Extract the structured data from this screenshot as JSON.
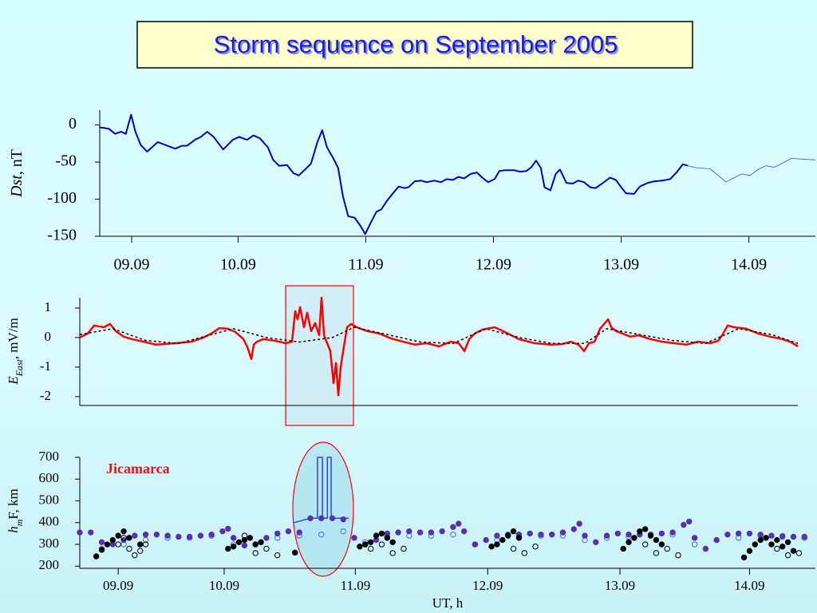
{
  "title": "Storm sequence on September 2005",
  "chart_data": [
    {
      "type": "line",
      "ylabel": [
        "Dst",
        ", nT"
      ],
      "xlim": [
        10,
        144.5
      ],
      "ylim": [
        -150,
        20
      ],
      "yticks": [
        0,
        -50,
        -100,
        -150
      ],
      "xticks": [
        {
          "value": 16,
          "label": "09.09"
        },
        {
          "value": 36,
          "label": "10.09"
        },
        {
          "value": 60,
          "label": "11.09"
        },
        {
          "value": 84,
          "label": "12.09"
        },
        {
          "value": 108,
          "label": "13.09"
        },
        {
          "value": 132,
          "label": "14.09"
        }
      ],
      "series": [
        {
          "color": "#0000cc",
          "line_width": 2,
          "x": [
            9.9,
            11.7,
            12.9,
            14.0,
            14.9,
            15.9,
            16.7,
            17.7,
            18.9,
            20.9,
            22.7,
            24.2,
            25.4,
            26.4,
            27.9,
            29.0,
            30.2,
            31.4,
            33.2,
            35.0,
            36.2,
            37.7,
            38.9,
            40.1,
            41.6,
            42.6,
            43.7,
            45.2,
            46.4,
            47.4,
            48.6,
            49.7,
            50.9,
            51.8,
            52.7,
            53.9,
            54.8,
            55.7,
            56.7,
            57.9,
            59.0,
            59.9,
            60.9,
            62.0,
            62.9,
            63.9,
            65.1,
            66.2,
            67.2,
            68.0,
            69.2,
            70.4,
            71.4,
            72.9,
            74.1,
            75.2,
            76.4,
            77.4,
            78.5,
            79.7,
            80.9,
            81.9,
            83.0,
            84.2,
            85.1,
            86.1,
            87.9,
            89.0,
            90.2,
            91.1,
            92.0,
            92.9,
            93.6,
            94.7,
            95.7,
            96.5,
            97.7,
            98.9,
            99.9,
            101.0,
            102.2,
            103.2,
            104.4,
            105.9,
            107.0,
            107.9,
            108.9,
            110.4,
            111.5,
            113.0,
            114.2,
            115.7,
            117.2,
            118.4,
            119.6,
            120.5
          ],
          "values": [
            -3,
            -5,
            -12,
            -9,
            -12,
            14,
            -9,
            -27,
            -36,
            -23,
            -28,
            -32,
            -28,
            -28,
            -20,
            -16,
            -9,
            -16,
            -33,
            -20,
            -16,
            -20,
            -14,
            -18,
            -30,
            -47,
            -55,
            -54,
            -65,
            -68,
            -60,
            -52,
            -23,
            -7,
            -30,
            -45,
            -58,
            -96,
            -123,
            -125,
            -136,
            -147,
            -132,
            -117,
            -114,
            -103,
            -92,
            -83,
            -85,
            -84,
            -76,
            -75,
            -77,
            -75,
            -77,
            -73,
            -74,
            -70,
            -72,
            -66,
            -64,
            -71,
            -77,
            -73,
            -62,
            -61,
            -61,
            -63,
            -62,
            -57,
            -48,
            -58,
            -84,
            -88,
            -66,
            -60,
            -78,
            -79,
            -75,
            -77,
            -84,
            -85,
            -79,
            -71,
            -74,
            -83,
            -92,
            -93,
            -83,
            -78,
            -76,
            -75,
            -73,
            -64,
            -53,
            -55
          ]
        },
        {
          "color": "#3355cc",
          "line_width": 0.8,
          "x": [
            120.5,
            122.4,
            124.7,
            126.2,
            127.7,
            129.2,
            130.7,
            132.2,
            133.7,
            135.2,
            136.7,
            138.2,
            140.0,
            141.9,
            144.5
          ],
          "values": [
            -55,
            -58,
            -59,
            -68,
            -77,
            -71,
            -66,
            -68,
            -60,
            -55,
            -57,
            -52,
            -45,
            -46,
            -47
          ]
        }
      ]
    },
    {
      "type": "line",
      "ylabel": [
        "E",
        "East",
        ", mV/m"
      ],
      "xlim": [
        10,
        140.8
      ],
      "ylim": [
        -2.3,
        1.35
      ],
      "yticks": [
        1,
        0,
        -1,
        -2
      ],
      "series": [
        {
          "color": "#ff0000",
          "line_width": 2.5,
          "x": [
            10,
            11.45,
            12.62,
            14.36,
            15.52,
            16.54,
            17.99,
            19.45,
            21.63,
            23.81,
            25.26,
            27.44,
            30.35,
            32.53,
            33.98,
            35.44,
            36.89,
            38.34,
            39.8,
            40.52,
            41.25,
            41.69,
            42.27,
            43.43,
            45.61,
            47.5,
            48.66,
            49.24,
            49.68,
            50.12,
            50.84,
            51.42,
            52.15,
            52.88,
            53.6,
            54.04,
            54.48,
            55.06,
            55.64,
            56.22,
            56.66,
            57.09,
            57.53,
            57.97,
            58.69,
            59.42,
            60.44,
            62.33,
            64.51,
            66.69,
            68.87,
            71.05,
            73.23,
            75.41,
            77.59,
            79.04,
            80.06,
            80.93,
            81.95,
            83.4,
            85.58,
            87.76,
            89.94,
            92.85,
            95.76,
            97.94,
            99.39,
            100.84,
            101.86,
            102.73,
            103.75,
            104.77,
            105.64,
            106.22,
            106.8,
            107.67,
            108.84,
            110.29,
            111.74,
            113.92,
            116.1,
            118.28,
            120.47,
            122.65,
            124.83,
            126.28,
            127.01,
            128.02,
            129.19,
            131.37,
            133.55,
            135.73,
            137.91,
            139.36,
            140.81
          ],
          "values": [
            0,
            0.14,
            0.41,
            0.35,
            0.46,
            0.22,
            0.03,
            -0.05,
            -0.14,
            -0.24,
            -0.22,
            -0.19,
            -0.14,
            0,
            0.14,
            0.32,
            0.3,
            0.19,
            -0.05,
            -0.32,
            -0.73,
            -0.24,
            -0.14,
            -0.05,
            -0.11,
            -0.19,
            -0.14,
            0.89,
            0.62,
            1.03,
            0.35,
            0.84,
            0.22,
            0.49,
            0.08,
            1.35,
            0.08,
            -0.19,
            -0.46,
            -1.54,
            -0.86,
            -1.95,
            -1.0,
            -0.46,
            0.35,
            0.46,
            0.35,
            0.22,
            0.14,
            -0.03,
            -0.14,
            -0.24,
            -0.19,
            -0.3,
            -0.14,
            -0.19,
            -0.46,
            -0.05,
            0.14,
            0.27,
            0.35,
            0.16,
            -0.05,
            -0.19,
            -0.24,
            -0.22,
            -0.14,
            -0.24,
            -0.46,
            -0.19,
            -0.14,
            0.3,
            0.49,
            0.62,
            0.35,
            0.22,
            0.14,
            0.03,
            0.08,
            -0.05,
            -0.14,
            -0.19,
            -0.24,
            -0.14,
            -0.19,
            -0.11,
            0.08,
            0.41,
            0.35,
            0.3,
            0.14,
            0.03,
            -0.05,
            -0.14,
            -0.3
          ]
        },
        {
          "color": "#000000",
          "line_width": 1.5,
          "dash": true,
          "x": [
            10,
            16,
            22,
            28,
            34,
            38,
            44,
            50,
            56,
            60,
            66,
            72,
            78,
            84,
            90,
            96,
            102,
            106,
            112,
            118,
            124,
            130,
            136,
            140.8
          ],
          "values": [
            0.1,
            0.3,
            -0.1,
            -0.2,
            0.1,
            0.3,
            0.0,
            -0.15,
            0.0,
            0.35,
            0.1,
            -0.15,
            -0.2,
            0.3,
            0.0,
            -0.2,
            -0.2,
            0.3,
            0.1,
            -0.1,
            -0.2,
            0.3,
            0.1,
            -0.2
          ]
        }
      ]
    },
    {
      "type": "scatter",
      "ylabel": [
        "h",
        "m",
        "F, km"
      ],
      "xlabel": "UT, h",
      "annotation": "Jicamarca",
      "xlim": [
        10,
        144
      ],
      "ylim": [
        190,
        700
      ],
      "yticks": [
        700,
        600,
        500,
        400,
        300,
        200
      ],
      "xticks": [
        {
          "value": 17,
          "label": "09.09"
        },
        {
          "value": 36.3,
          "label": "10.09"
        },
        {
          "value": 60.2,
          "label": "11.09"
        },
        {
          "value": 84.3,
          "label": "12.09"
        },
        {
          "value": 108.4,
          "label": "13.09"
        },
        {
          "value": 132,
          "label": "14.09"
        }
      ],
      "series": [
        {
          "type": "line",
          "color": "#3344dd",
          "line_width": 1.5,
          "x": [
            49,
            52,
            53.3,
            53.3,
            54.2,
            54.2,
            55.1,
            55.1,
            55.8,
            55.8,
            59
          ],
          "values": [
            400,
            420,
            420,
            700,
            700,
            420,
            420,
            700,
            700,
            420,
            420
          ]
        },
        {
          "color": "#4a66ee",
          "marker": "open",
          "x": [
            14,
            18,
            22,
            26,
            30,
            34,
            38,
            42,
            46,
            50,
            54,
            58,
            62,
            66,
            70,
            74,
            78,
            82,
            86,
            90,
            94,
            98,
            102,
            106,
            110,
            114,
            118,
            122,
            126,
            130,
            134,
            138,
            142
          ],
          "values": [
            280,
            300,
            320,
            330,
            330,
            340,
            300,
            300,
            330,
            340,
            345,
            360,
            310,
            335,
            340,
            340,
            345,
            300,
            320,
            335,
            340,
            340,
            320,
            330,
            335,
            340,
            345,
            300,
            320,
            330,
            340,
            335,
            330
          ]
        },
        {
          "color": "#5a2fb0",
          "marker": "filled",
          "x": [
            10,
            12,
            14,
            16,
            18,
            20,
            22,
            24,
            26,
            28,
            30,
            32,
            34,
            36,
            37,
            38,
            40,
            42,
            44,
            46,
            48,
            50,
            52,
            54,
            56,
            58,
            60,
            62,
            64,
            66,
            68,
            70,
            72,
            74,
            76,
            78,
            79,
            80,
            82,
            84,
            86,
            88,
            90,
            92,
            94,
            96,
            98,
            100,
            101,
            102,
            104,
            106,
            108,
            110,
            112,
            114,
            116,
            118,
            120,
            121,
            122,
            124,
            126,
            128,
            130,
            132,
            134,
            136,
            138,
            140,
            142
          ],
          "values": [
            355,
            355,
            310,
            300,
            320,
            340,
            345,
            345,
            340,
            335,
            335,
            340,
            345,
            360,
            372,
            330,
            295,
            300,
            330,
            350,
            360,
            355,
            420,
            420,
            420,
            415,
            330,
            300,
            320,
            350,
            355,
            360,
            355,
            355,
            360,
            380,
            395,
            360,
            300,
            320,
            340,
            345,
            345,
            350,
            345,
            345,
            355,
            370,
            395,
            340,
            310,
            340,
            350,
            345,
            345,
            345,
            350,
            355,
            390,
            405,
            330,
            280,
            320,
            345,
            350,
            350,
            345,
            340,
            338,
            335,
            335
          ]
        },
        {
          "color": "#000000",
          "marker": "filled",
          "x": [
            13,
            14,
            15,
            16,
            17,
            18,
            19,
            21,
            37,
            38,
            39,
            40,
            41,
            42,
            43,
            49.2,
            61,
            62,
            63,
            64,
            65,
            66,
            67,
            85,
            86,
            87,
            88,
            89,
            90,
            109,
            110,
            111,
            112,
            113,
            114,
            115,
            116,
            131,
            132,
            133,
            134,
            135,
            136,
            137,
            138,
            139,
            140
          ],
          "values": [
            245,
            275,
            300,
            320,
            340,
            360,
            330,
            300,
            280,
            290,
            310,
            320,
            330,
            300,
            310,
            262,
            290,
            300,
            310,
            340,
            350,
            330,
            310,
            290,
            300,
            320,
            340,
            360,
            330,
            280,
            310,
            330,
            360,
            370,
            340,
            320,
            300,
            240,
            270,
            300,
            320,
            330,
            300,
            320,
            290,
            310,
            270
          ]
        },
        {
          "color": "#000000",
          "marker": "open",
          "x": [
            17,
            18,
            19,
            20,
            21,
            22,
            40,
            42,
            44,
            46,
            63,
            65,
            67,
            69,
            89,
            91,
            93,
            113,
            115,
            117,
            119,
            137,
            139,
            141
          ],
          "values": [
            300,
            330,
            280,
            250,
            270,
            300,
            340,
            260,
            280,
            250,
            280,
            300,
            260,
            280,
            280,
            260,
            290,
            300,
            260,
            280,
            250,
            280,
            250,
            260
          ]
        }
      ]
    }
  ]
}
